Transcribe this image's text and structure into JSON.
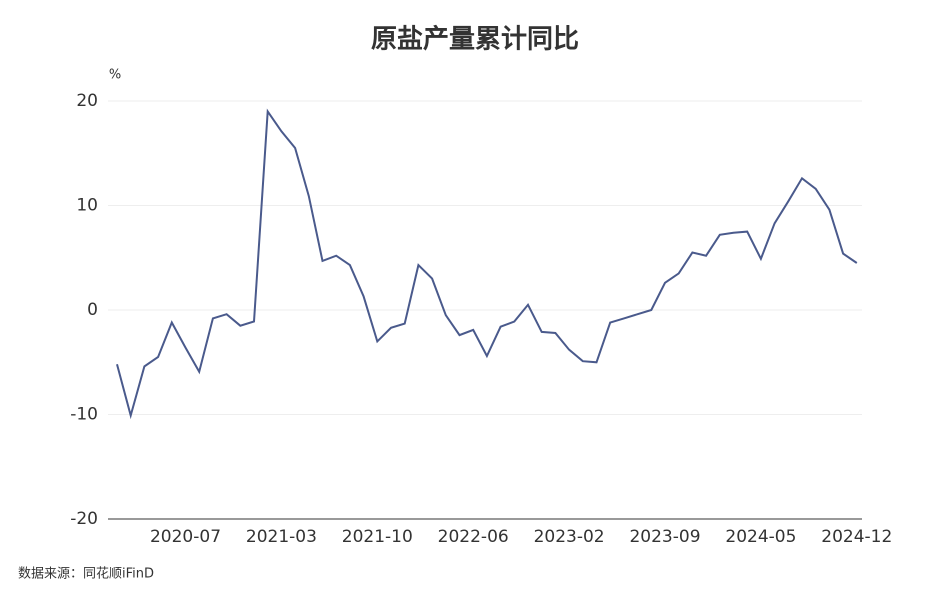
{
  "chart_data": {
    "type": "line",
    "title": "原盐产量累计同比",
    "y_unit": "%",
    "source": "数据来源：同花顺iFinD",
    "categories": [
      null,
      null,
      null,
      null,
      null,
      "2020-07",
      null,
      null,
      null,
      null,
      null,
      null,
      "2021-03",
      null,
      null,
      null,
      null,
      null,
      null,
      "2021-10",
      null,
      null,
      null,
      null,
      null,
      null,
      "2022-06",
      null,
      null,
      null,
      null,
      null,
      null,
      "2023-02",
      null,
      null,
      null,
      null,
      null,
      null,
      "2023-09",
      null,
      null,
      null,
      null,
      null,
      null,
      "2024-05",
      null,
      null,
      null,
      null,
      null,
      null,
      "2024-12"
    ],
    "series": [
      {
        "name": "原盐产量累计同比",
        "color": "#4a5a8c",
        "values": [
          -5.2,
          -10.1,
          -5.4,
          -4.5,
          -1.2,
          -3.6,
          -5.9,
          -0.8,
          -0.4,
          -1.5,
          -1.1,
          19.0,
          17.1,
          15.5,
          10.9,
          4.7,
          5.2,
          4.3,
          1.3,
          -3.0,
          -1.7,
          -1.3,
          4.3,
          3.0,
          -0.5,
          -2.4,
          -1.9,
          -4.4,
          -1.6,
          -1.1,
          0.5,
          -2.1,
          -2.2,
          -3.8,
          -4.9,
          -5.0,
          -1.2,
          -0.8,
          -0.4,
          0.0,
          2.6,
          3.5,
          5.5,
          5.2,
          7.2,
          7.4,
          7.5,
          4.9,
          8.3,
          10.4,
          12.6,
          11.6,
          9.6,
          5.4,
          4.5
        ]
      }
    ],
    "ylim": [
      -20,
      20
    ],
    "yticks": [
      -20,
      -10,
      0,
      10,
      20
    ],
    "grid": true
  }
}
